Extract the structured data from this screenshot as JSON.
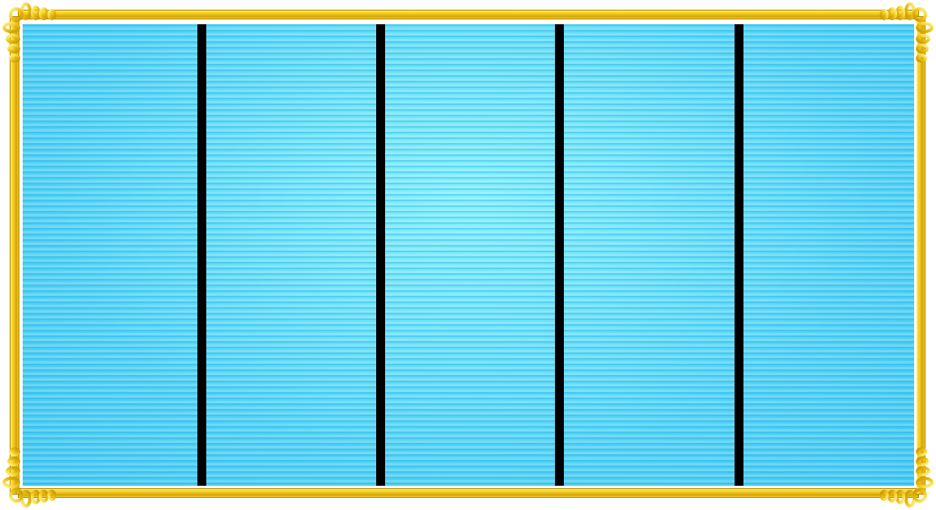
{
  "scene": {
    "type": "swimming-pool-top-view",
    "lane_count": 5,
    "divider_count": 4,
    "water_color": "#5fd9f6",
    "divider_color": "#000000",
    "frame_color": "#f2cf1e"
  }
}
